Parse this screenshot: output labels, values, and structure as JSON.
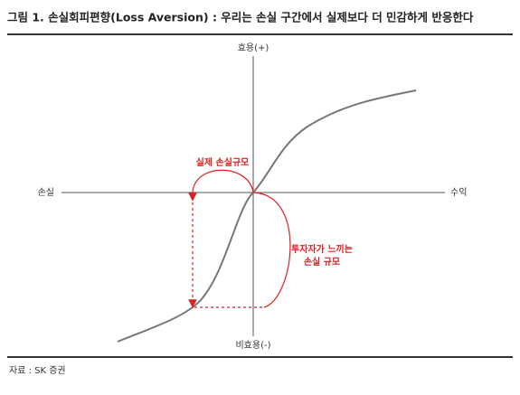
{
  "header": {
    "title": "그림 1. 손실회피편향(Loss Aversion) : 우리는 손실 구간에서 실제보다 더 민감하게 반응한다"
  },
  "axes": {
    "top": "효용(+)",
    "bottom": "비효용(-)",
    "left": "손실",
    "right": "수익"
  },
  "annotations": {
    "actual_loss": "실제 손실규모",
    "perceived_loss": [
      "투자자가 느끼는",
      "손실 규모"
    ]
  },
  "footer": {
    "source": "자료 : SK 증권"
  }
}
